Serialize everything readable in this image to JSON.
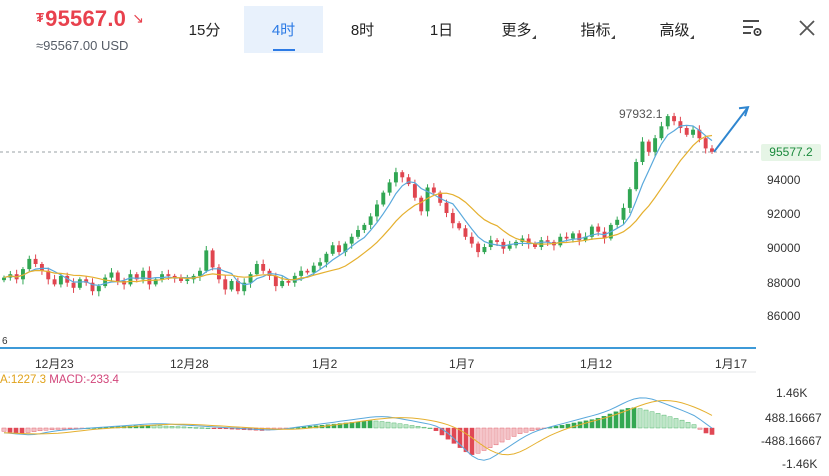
{
  "header": {
    "currency_symbol": "₮",
    "price": "95567.0",
    "price_arrow": "↘",
    "usd_value": "≈95567.00 USD",
    "tabs": [
      {
        "label": "15分",
        "active": false
      },
      {
        "label": "4时",
        "active": true
      },
      {
        "label": "8时",
        "active": false
      },
      {
        "label": "1日",
        "active": false
      },
      {
        "label": "更多",
        "active": false
      },
      {
        "label": "指标",
        "active": false
      },
      {
        "label": "高级",
        "active": false
      }
    ],
    "icons": [
      "chart-settings-icon",
      "close-icon"
    ]
  },
  "chart": {
    "peak_label": "97932.1",
    "current_price_tag": "95577.2",
    "y_labels": [
      "94000",
      "92000",
      "90000",
      "88000",
      "86000"
    ],
    "x_labels": [
      "12月23",
      "12月28",
      "1月2",
      "1月7",
      "1月12",
      "1月17"
    ],
    "left_edge_label": "6",
    "macd_header": {
      "a": "A:1227.3",
      "b": "MACD:-233.4"
    },
    "macd_y_labels": [
      "1.46K",
      "488.16667",
      "-488.16667",
      "-1.46K"
    ]
  },
  "chart_data": [
    {
      "type": "candlestick",
      "x": [
        "12月23",
        "12月28",
        "1月2",
        "1月7",
        "1月12",
        "1月17"
      ],
      "ylim": [
        84500,
        98500
      ],
      "y_ticks": [
        86000,
        88000,
        90000,
        92000,
        94000
      ],
      "current_price": 95577.2,
      "peak": 97932.1,
      "closes": [
        88200,
        88400,
        88100,
        88700,
        89300,
        89000,
        88600,
        88100,
        87800,
        88300,
        87900,
        87600,
        88100,
        87900,
        87400,
        87700,
        88200,
        88500,
        88000,
        87800,
        88400,
        88100,
        88600,
        87800,
        88100,
        88400,
        88300,
        88200,
        88000,
        88100,
        88300,
        88600,
        89800,
        88800,
        88100,
        87500,
        88000,
        87400,
        87900,
        88400,
        89000,
        88600,
        88300,
        87700,
        88000,
        87900,
        88300,
        88600,
        88500,
        88900,
        89100,
        89600,
        90100,
        89700,
        90200,
        90600,
        91000,
        91300,
        91800,
        92500,
        93200,
        93800,
        94400,
        94100,
        93700,
        92900,
        92100,
        93500,
        93200,
        92600,
        92000,
        91400,
        91100,
        90600,
        90200,
        89700,
        90000,
        90400,
        90300,
        89900,
        90100,
        90300,
        90500,
        90200,
        90000,
        90400,
        90300,
        90100,
        90600,
        90500,
        90800,
        90400,
        90600,
        91200,
        90900,
        90500,
        91300,
        91600,
        92300,
        93400,
        95000,
        96200,
        95600,
        96400,
        97100,
        97700,
        97400,
        97000,
        96600,
        96900,
        96400,
        95800,
        95600
      ],
      "trend_arrow": {
        "from_price": 95600,
        "to_price": 97400
      }
    },
    {
      "type": "bar",
      "title": "MACD",
      "ylim": [
        -1460,
        1460
      ],
      "values": [
        -120,
        -150,
        -180,
        -200,
        -160,
        -130,
        -100,
        -80,
        -60,
        -50,
        -40,
        -30,
        -20,
        -10,
        0,
        10,
        20,
        30,
        40,
        50,
        60,
        70,
        80,
        90,
        100,
        90,
        80,
        70,
        60,
        50,
        40,
        30,
        20,
        10,
        0,
        -10,
        -20,
        -30,
        -40,
        -50,
        -60,
        -70,
        -80,
        -90,
        -80,
        -60,
        -40,
        -20,
        0,
        20,
        40,
        60,
        80,
        100,
        120,
        140,
        160,
        180,
        200,
        220,
        240,
        260,
        250,
        230,
        210,
        180,
        150,
        120,
        90,
        60,
        30,
        0,
        -100,
        -250,
        -400,
        -550,
        -700,
        -850,
        -950,
        -900,
        -800,
        -700,
        -600,
        -500,
        -400,
        -300,
        -200,
        -150,
        -100,
        -60,
        -20,
        20,
        60,
        100,
        140,
        180,
        220,
        260,
        300,
        350,
        420,
        500,
        580,
        650,
        700,
        720,
        690,
        640,
        580,
        520,
        460,
        400,
        340,
        280,
        200,
        120,
        -50,
        -180,
        -233
      ]
    }
  ]
}
